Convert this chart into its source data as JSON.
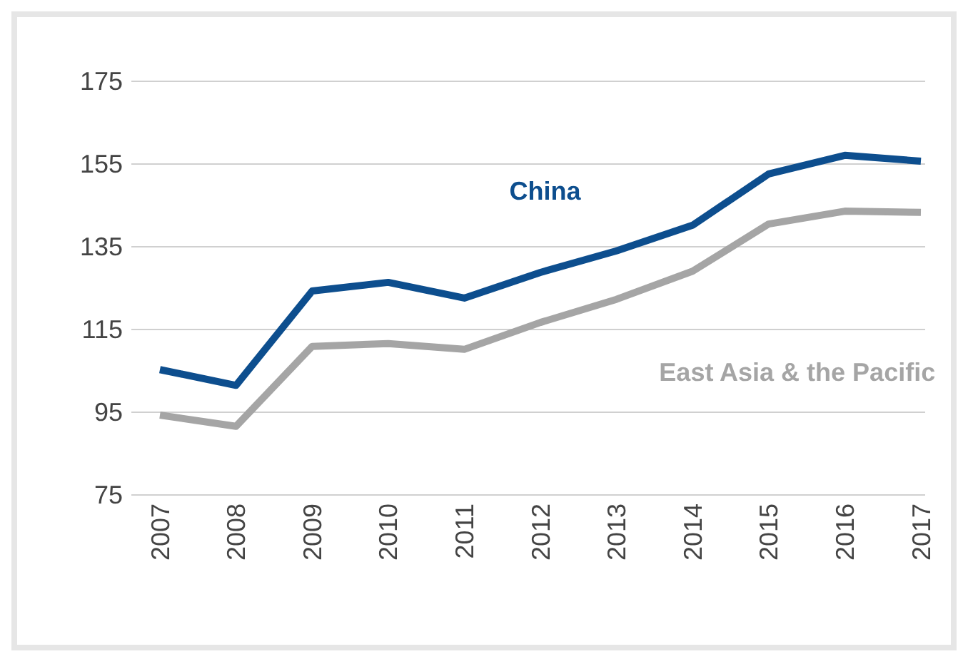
{
  "chart_data": {
    "type": "line",
    "categories": [
      "2007",
      "2008",
      "2009",
      "2010",
      "2011",
      "2012",
      "2013",
      "2014",
      "2015",
      "2016",
      "2017"
    ],
    "series": [
      {
        "name": "China",
        "color": "#0d4e8e",
        "values": [
          105.3,
          101.5,
          124.3,
          126.4,
          122.6,
          128.8,
          134,
          140.2,
          152.6,
          157.1,
          155.7
        ]
      },
      {
        "name": "East Asia & the Pacific",
        "color": "#a5a5a5",
        "values": [
          94.3,
          91.6,
          110.9,
          111.6,
          110.2,
          116.7,
          122.3,
          129.1,
          140.5,
          143.6,
          143.3
        ]
      }
    ],
    "ylim": [
      75,
      175
    ],
    "yticks": [
      75,
      95,
      115,
      135,
      155,
      175
    ],
    "grid": "y",
    "marker": "none",
    "line_style": "solid"
  }
}
